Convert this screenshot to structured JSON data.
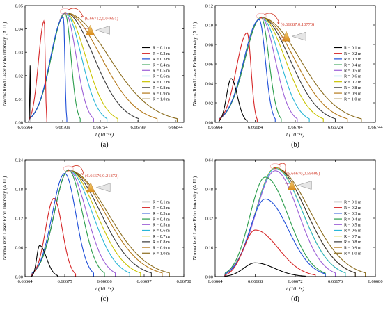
{
  "colors": {
    "R = 0.1 m": "#000000",
    "R = 0.2 m": "#d62728",
    "R = 0.3 m": "#1f4fd8",
    "R = 0.4 m": "#2a9d4b",
    "R = 0.5 m": "#9c5fd6",
    "R = 0.6 m": "#29b6d6",
    "R = 0.7 m": "#c9c400",
    "R = 0.8 m": "#3a3a3a",
    "R = 0.9 m": "#b5791a",
    "R = 1.0 m": "#8c6d1f",
    "annotation": "#d23b2a",
    "cone_dark": "#d88a1a",
    "cone_light": "#f6d37a"
  },
  "legend_labels": [
    "R = 0.1 m",
    "R = 0.2 m",
    "R = 0.3 m",
    "R = 0.4 m",
    "R = 0.5 m",
    "R = 0.6 m",
    "R = 0.7 m",
    "R = 0.8 m",
    "R = 0.9 m",
    "R = 1.0 m"
  ],
  "chart_data": [
    {
      "type": "line",
      "panel_label": "(a)",
      "xlabel": "t (10⁻⁵s)",
      "ylabel": "Normalized Laser Echo Intensity (A.U.)",
      "xlim": [
        6.66664,
        6.66854
      ],
      "ylim": [
        0,
        0.05
      ],
      "xticks": [
        6.66664,
        6.66709,
        6.66754,
        6.66799,
        6.66844
      ],
      "xtick_labels": [
        "6.66664",
        "6.66709",
        "6.66754",
        "6.66799",
        "6.66844"
      ],
      "yticks": [
        0,
        0.01,
        0.02,
        0.03,
        0.04,
        0.05
      ],
      "ytick_labels": [
        "0.00",
        "0.01",
        "0.02",
        "0.03",
        "0.04",
        "0.05"
      ],
      "peak_annotation": "(6.66712,0.04691)",
      "annotation_offset": [
        28,
        10
      ],
      "peak": {
        "t": 6.66712,
        "v": 0.04691
      },
      "envelope": {
        "start": 6.66664,
        "end": 6.6685,
        "skew": 0.26
      },
      "series": [
        {
          "name": "R = 0.1 m",
          "start": 6.66669,
          "end": 6.66671,
          "peak_t": 6.6667,
          "peak_v": 0.0245
        },
        {
          "name": "R = 0.2 m",
          "start": 6.66669,
          "end": 6.6669,
          "peak_t": 6.66687,
          "peak_v": 0.0435
        },
        {
          "name": "R = 0.3 m",
          "start": 6.66669,
          "end": 6.66714,
          "peak_t": 6.6671,
          "peak_v": 0.045
        },
        {
          "name": "R = 0.4 m",
          "start": 6.66669,
          "end": 6.6673,
          "peak_t": 6.66712,
          "peak_v": 0.0465
        },
        {
          "name": "R = 0.5 m",
          "start": 6.66669,
          "end": 6.66746,
          "peak_t": 6.66712,
          "peak_v": 0.0469
        },
        {
          "name": "R = 0.6 m",
          "start": 6.66669,
          "end": 6.66762,
          "peak_t": 6.66712,
          "peak_v": 0.0469
        },
        {
          "name": "R = 0.7 m",
          "start": 6.66669,
          "end": 6.66775,
          "peak_t": 6.66712,
          "peak_v": 0.0469
        },
        {
          "name": "R = 0.8 m",
          "start": 6.66669,
          "end": 6.668,
          "peak_t": 6.66712,
          "peak_v": 0.0469
        },
        {
          "name": "R = 0.9 m",
          "start": 6.66669,
          "end": 6.66822,
          "peak_t": 6.66712,
          "peak_v": 0.0469
        },
        {
          "name": "R = 1.0 m",
          "start": 6.66669,
          "end": 6.66846,
          "peak_t": 6.66712,
          "peak_v": 0.0469
        }
      ]
    },
    {
      "type": "line",
      "panel_label": "(b)",
      "xlabel": "t (10⁻⁵s)",
      "ylabel": "Normalized Laser Echo Intensity (A.U.)",
      "xlim": [
        6.66664,
        6.66744
      ],
      "ylim": [
        0,
        0.12
      ],
      "xticks": [
        6.66664,
        6.66684,
        6.66704,
        6.66724,
        6.66744
      ],
      "xtick_labels": [
        "6.66664",
        "6.66684",
        "6.66704",
        "6.66724",
        "6.66744"
      ],
      "yticks": [
        0,
        0.02,
        0.04,
        0.06,
        0.08,
        0.1,
        0.12
      ],
      "ytick_labels": [
        "0.00",
        "0.02",
        "0.04",
        "0.06",
        "0.08",
        "0.10",
        "0.12"
      ],
      "peak_annotation": "(6.66687,0.10770)",
      "annotation_offset": [
        28,
        12
      ],
      "peak": {
        "t": 6.66687,
        "v": 0.1077
      },
      "envelope": {
        "start": 6.66666,
        "end": 6.66738,
        "skew": 0.3
      },
      "series": [
        {
          "name": "R = 0.1 m",
          "start": 6.66666,
          "end": 6.6668,
          "peak_t": 6.66672,
          "peak_v": 0.045
        },
        {
          "name": "R = 0.2 m",
          "start": 6.66666,
          "end": 6.66685,
          "peak_t": 6.6668,
          "peak_v": 0.092
        },
        {
          "name": "R = 0.3 m",
          "start": 6.66666,
          "end": 6.66694,
          "peak_t": 6.66686,
          "peak_v": 0.1055
        },
        {
          "name": "R = 0.4 m",
          "start": 6.66666,
          "end": 6.66697,
          "peak_t": 6.66687,
          "peak_v": 0.1077
        },
        {
          "name": "R = 0.5 m",
          "start": 6.66666,
          "end": 6.66705,
          "peak_t": 6.66687,
          "peak_v": 0.1077
        },
        {
          "name": "R = 0.6 m",
          "start": 6.66666,
          "end": 6.66711,
          "peak_t": 6.66687,
          "peak_v": 0.1077
        },
        {
          "name": "R = 0.7 m",
          "start": 6.66666,
          "end": 6.66718,
          "peak_t": 6.66687,
          "peak_v": 0.1077
        },
        {
          "name": "R = 0.8 m",
          "start": 6.66666,
          "end": 6.66724,
          "peak_t": 6.66687,
          "peak_v": 0.1077
        },
        {
          "name": "R = 0.9 m",
          "start": 6.66666,
          "end": 6.6673,
          "peak_t": 6.66687,
          "peak_v": 0.1077
        },
        {
          "name": "R = 1.0 m",
          "start": 6.66666,
          "end": 6.66737,
          "peak_t": 6.66687,
          "peak_v": 0.1077
        }
      ]
    },
    {
      "type": "line",
      "panel_label": "(c)",
      "xlabel": "t (10⁻⁵s)",
      "ylabel": "Normalized Laser Echo Intensity (A.U.)",
      "xlim": [
        6.66664,
        6.66708
      ],
      "ylim": [
        0,
        0.24
      ],
      "xticks": [
        6.66664,
        6.66675,
        6.66686,
        6.66697,
        6.66708
      ],
      "xtick_labels": [
        "6.66664",
        "6.66675",
        "6.66686",
        "6.66697",
        "6.66708"
      ],
      "yticks": [
        0,
        0.06,
        0.12,
        0.18,
        0.24
      ],
      "ytick_labels": [
        "0.00",
        "0.06",
        "0.12",
        "0.18",
        "0.24"
      ],
      "peak_annotation": "(6.66676,0.21872)",
      "annotation_offset": [
        24,
        10
      ],
      "peak": {
        "t": 6.66676,
        "v": 0.21872
      },
      "envelope": {
        "start": 6.66666,
        "end": 6.66704,
        "skew": 0.32
      },
      "series": [
        {
          "name": "R = 0.1 m",
          "start": 6.66666,
          "end": 6.66673,
          "peak_t": 6.66668,
          "peak_v": 0.064
        },
        {
          "name": "R = 0.2 m",
          "start": 6.66666,
          "end": 6.66678,
          "peak_t": 6.66672,
          "peak_v": 0.161
        },
        {
          "name": "R = 0.3 m",
          "start": 6.66666,
          "end": 6.66683,
          "peak_t": 6.66675,
          "peak_v": 0.212
        },
        {
          "name": "R = 0.4 m",
          "start": 6.66666,
          "end": 6.66686,
          "peak_t": 6.66676,
          "peak_v": 0.2187
        },
        {
          "name": "R = 0.5 m",
          "start": 6.66666,
          "end": 6.66689,
          "peak_t": 6.66676,
          "peak_v": 0.2187
        },
        {
          "name": "R = 0.6 m",
          "start": 6.66666,
          "end": 6.66693,
          "peak_t": 6.66676,
          "peak_v": 0.2187
        },
        {
          "name": "R = 0.7 m",
          "start": 6.66666,
          "end": 6.66696,
          "peak_t": 6.66676,
          "peak_v": 0.2187
        },
        {
          "name": "R = 0.8 m",
          "start": 6.66666,
          "end": 6.66699,
          "peak_t": 6.66676,
          "peak_v": 0.2187
        },
        {
          "name": "R = 0.9 m",
          "start": 6.66666,
          "end": 6.66702,
          "peak_t": 6.66676,
          "peak_v": 0.2187
        },
        {
          "name": "R = 1.0 m",
          "start": 6.66666,
          "end": 6.66704,
          "peak_t": 6.66676,
          "peak_v": 0.2187
        }
      ]
    },
    {
      "type": "line",
      "panel_label": "(d)",
      "xlabel": "t (10⁻⁵s)",
      "ylabel": "Normalized Laser Echo Intensity (A.U.)",
      "xlim": [
        6.66664,
        6.6668
      ],
      "ylim": [
        0,
        0.64
      ],
      "xticks": [
        6.66664,
        6.66668,
        6.66672,
        6.66676,
        6.6668
      ],
      "xtick_labels": [
        "6.66664",
        "6.66668",
        "6.66672",
        "6.66676",
        "6.66680"
      ],
      "yticks": [
        0,
        0.16,
        0.32,
        0.48,
        0.64
      ],
      "ytick_labels": [
        "0.00",
        "0.16",
        "0.32",
        "0.48",
        "0.64"
      ],
      "peak_annotation": "(6.66670,0.59609)",
      "annotation_offset": [
        16,
        10
      ],
      "peak": {
        "t": 6.6667,
        "v": 0.59609
      },
      "envelope": {
        "start": 6.66665,
        "end": 6.66678,
        "skew": 0.38
      },
      "series": [
        {
          "name": "R = 0.1 m",
          "start": 6.66665,
          "end": 6.66673,
          "peak_t": 6.66668,
          "peak_v": 0.075
        },
        {
          "name": "R = 0.2 m",
          "start": 6.66665,
          "end": 6.66674,
          "peak_t": 6.66668,
          "peak_v": 0.255
        },
        {
          "name": "R = 0.3 m",
          "start": 6.66665,
          "end": 6.66675,
          "peak_t": 6.66669,
          "peak_v": 0.425
        },
        {
          "name": "R = 0.4 m",
          "start": 6.66665,
          "end": 6.66675,
          "peak_t": 6.66669,
          "peak_v": 0.545
        },
        {
          "name": "R = 0.5 m",
          "start": 6.66665,
          "end": 6.66676,
          "peak_t": 6.6667,
          "peak_v": 0.58
        },
        {
          "name": "R = 0.6 m",
          "start": 6.66665,
          "end": 6.66677,
          "peak_t": 6.6667,
          "peak_v": 0.5925
        },
        {
          "name": "R = 0.7 m",
          "start": 6.66665,
          "end": 6.66677,
          "peak_t": 6.6667,
          "peak_v": 0.596
        },
        {
          "name": "R = 0.8 m",
          "start": 6.66665,
          "end": 6.66678,
          "peak_t": 6.6667,
          "peak_v": 0.596
        },
        {
          "name": "R = 0.9 m",
          "start": 6.66665,
          "end": 6.66678,
          "peak_t": 6.6667,
          "peak_v": 0.596
        },
        {
          "name": "R = 1.0 m",
          "start": 6.66665,
          "end": 6.66679,
          "peak_t": 6.6667,
          "peak_v": 0.596
        }
      ]
    }
  ]
}
